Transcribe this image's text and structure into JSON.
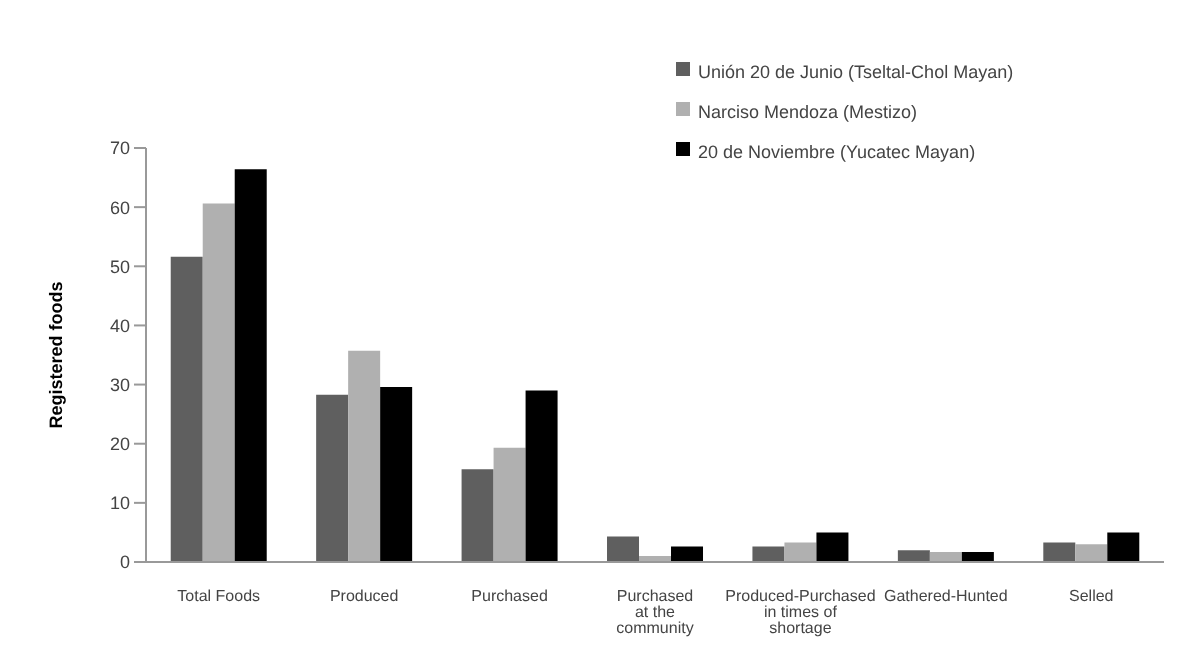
{
  "chart_data": {
    "type": "bar",
    "ylabel": "Registered  foods",
    "categories": [
      "Total Foods",
      "Produced",
      "Purchased",
      "Purchased at the community",
      "Produced-Purchased in times of shortage",
      "Gathered-Hunted",
      "Selled"
    ],
    "series": [
      {
        "name": "Unión 20 de Junio (Tseltal-Chol Mayan)",
        "color": "#5f5f5f",
        "values": [
          51.6,
          28.3,
          15.7,
          4.3,
          2.6,
          2.0,
          3.3
        ]
      },
      {
        "name": "Narciso Mendoza (Mestizo)",
        "color": "#b0b0b0",
        "values": [
          60.6,
          35.7,
          19.3,
          1.0,
          3.3,
          1.7,
          3.0
        ]
      },
      {
        "name": "20 de Noviembre (Yucatec Mayan)",
        "color": "#000000",
        "values": [
          66.4,
          29.6,
          29.0,
          2.6,
          5.0,
          1.7,
          5.0
        ]
      }
    ],
    "ylim": [
      0,
      70
    ],
    "yticks": [
      0,
      10,
      20,
      30,
      40,
      50,
      60,
      70
    ],
    "grid": false,
    "legend": "top right"
  }
}
